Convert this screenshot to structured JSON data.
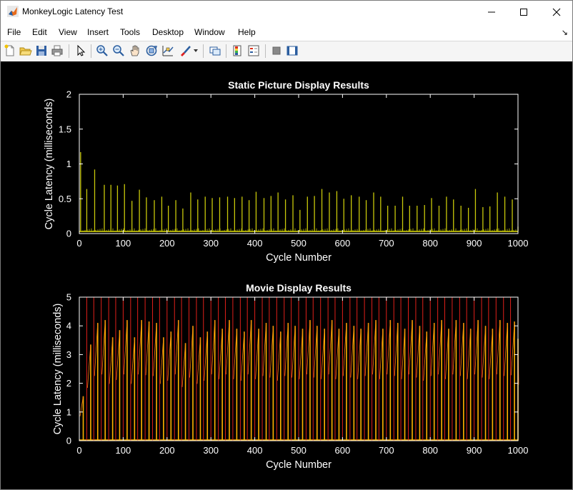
{
  "window": {
    "title": "MonkeyLogic Latency Test"
  },
  "menu": {
    "items": [
      "File",
      "Edit",
      "View",
      "Insert",
      "Tools",
      "Desktop",
      "Window",
      "Help"
    ],
    "overflow": "↘"
  },
  "toolbar": {
    "icons": [
      "new-figure-icon",
      "open-file-icon",
      "save-icon",
      "print-icon",
      "pointer-icon",
      "zoom-in-icon",
      "zoom-out-icon",
      "pan-icon",
      "rotate-3d-icon",
      "data-cursor-icon",
      "brush-icon",
      "link-plot-icon",
      "colorbar-icon",
      "legend-icon",
      "hide-plot-tools-icon",
      "show-plot-tools-icon"
    ]
  },
  "colors": {
    "static_series": "#c8c80a",
    "movie_series_peak": "#e0201a",
    "movie_series_tail": "#ffb400",
    "axes": "#ffffff",
    "background": "#000000"
  },
  "chart_data": [
    {
      "type": "line",
      "title": "Static Picture Display Results",
      "xlabel": "Cycle Number",
      "ylabel": "Cycle Latency (milliseconds)",
      "xlim": [
        0,
        1000
      ],
      "ylim": [
        0,
        2
      ],
      "xticks": [
        "0",
        "100",
        "200",
        "300",
        "400",
        "500",
        "600",
        "700",
        "800",
        "900",
        "1000"
      ],
      "yticks": [
        "0",
        "0.5",
        "1",
        "1.5",
        "2"
      ],
      "baseline": 0.03,
      "series": [
        {
          "spike_x": [
            3,
            17,
            35,
            57,
            72,
            87,
            103,
            120,
            137,
            153,
            171,
            188,
            203,
            220,
            236,
            254,
            270,
            287,
            303,
            320,
            338,
            354,
            371,
            387,
            403,
            421,
            437,
            453,
            470,
            487,
            503,
            520,
            536,
            553,
            570,
            587,
            603,
            620,
            638,
            654,
            671,
            687,
            703,
            720,
            737,
            753,
            770,
            787,
            803,
            820,
            837,
            853,
            870,
            887,
            903,
            920,
            936,
            953,
            970,
            987,
            1000
          ],
          "spike_y": [
            1.17,
            0.64,
            0.92,
            0.7,
            0.7,
            0.69,
            0.71,
            0.47,
            0.63,
            0.52,
            0.48,
            0.53,
            0.4,
            0.48,
            0.36,
            0.59,
            0.49,
            0.53,
            0.51,
            0.52,
            0.53,
            0.51,
            0.53,
            0.48,
            0.6,
            0.51,
            0.54,
            0.59,
            0.49,
            0.55,
            0.34,
            0.53,
            0.54,
            0.64,
            0.59,
            0.61,
            0.5,
            0.55,
            0.53,
            0.48,
            0.59,
            0.53,
            0.4,
            0.4,
            0.53,
            0.4,
            0.4,
            0.41,
            0.51,
            0.4,
            0.53,
            0.49,
            0.4,
            0.37,
            0.64,
            0.38,
            0.39,
            0.59,
            0.53,
            0.49,
            0.1
          ]
        }
      ]
    },
    {
      "type": "line",
      "title": "Movie Display Results",
      "xlabel": "Cycle Number",
      "ylabel": "Cycle Latency (milliseconds)",
      "xlim": [
        0,
        1000
      ],
      "ylim": [
        0,
        5
      ],
      "xticks": [
        "0",
        "100",
        "200",
        "300",
        "400",
        "500",
        "600",
        "700",
        "800",
        "900",
        "1000"
      ],
      "yticks": [
        "0",
        "1",
        "2",
        "3",
        "4",
        "5"
      ],
      "series": [
        {
          "peak_x": [
            0,
            17,
            33,
            50,
            67,
            83,
            100,
            117,
            133,
            150,
            167,
            183,
            200,
            217,
            233,
            250,
            267,
            283,
            300,
            317,
            333,
            350,
            367,
            383,
            400,
            417,
            433,
            450,
            467,
            483,
            500,
            517,
            533,
            550,
            567,
            583,
            600,
            617,
            633,
            650,
            667,
            683,
            700,
            717,
            733,
            750,
            767,
            783,
            800,
            817,
            833,
            850,
            867,
            883,
            900,
            917,
            933,
            950,
            967,
            983,
            1000
          ],
          "peak_y": 5.0,
          "tail_y": [
            1.55,
            3.35,
            4.1,
            4.2,
            3.6,
            3.85,
            4.2,
            3.6,
            4.2,
            4.15,
            4.1,
            3.6,
            3.8,
            4.2,
            3.4,
            4.0,
            3.6,
            3.8,
            4.2,
            3.9,
            4.2,
            3.9,
            3.8,
            4.2,
            3.9,
            4.1,
            4.0,
            3.8,
            4.1,
            4.0,
            3.9,
            4.2,
            4.0,
            3.9,
            4.2,
            3.9,
            4.1,
            4.0,
            3.9,
            4.1,
            4.2,
            3.9,
            4.2,
            4.1,
            3.9,
            4.2,
            4.0,
            3.8,
            4.1,
            4.2,
            3.9,
            4.2,
            4.1,
            3.9,
            4.2,
            4.0,
            3.9,
            4.2,
            4.1,
            4.15,
            3.55
          ]
        }
      ]
    }
  ]
}
